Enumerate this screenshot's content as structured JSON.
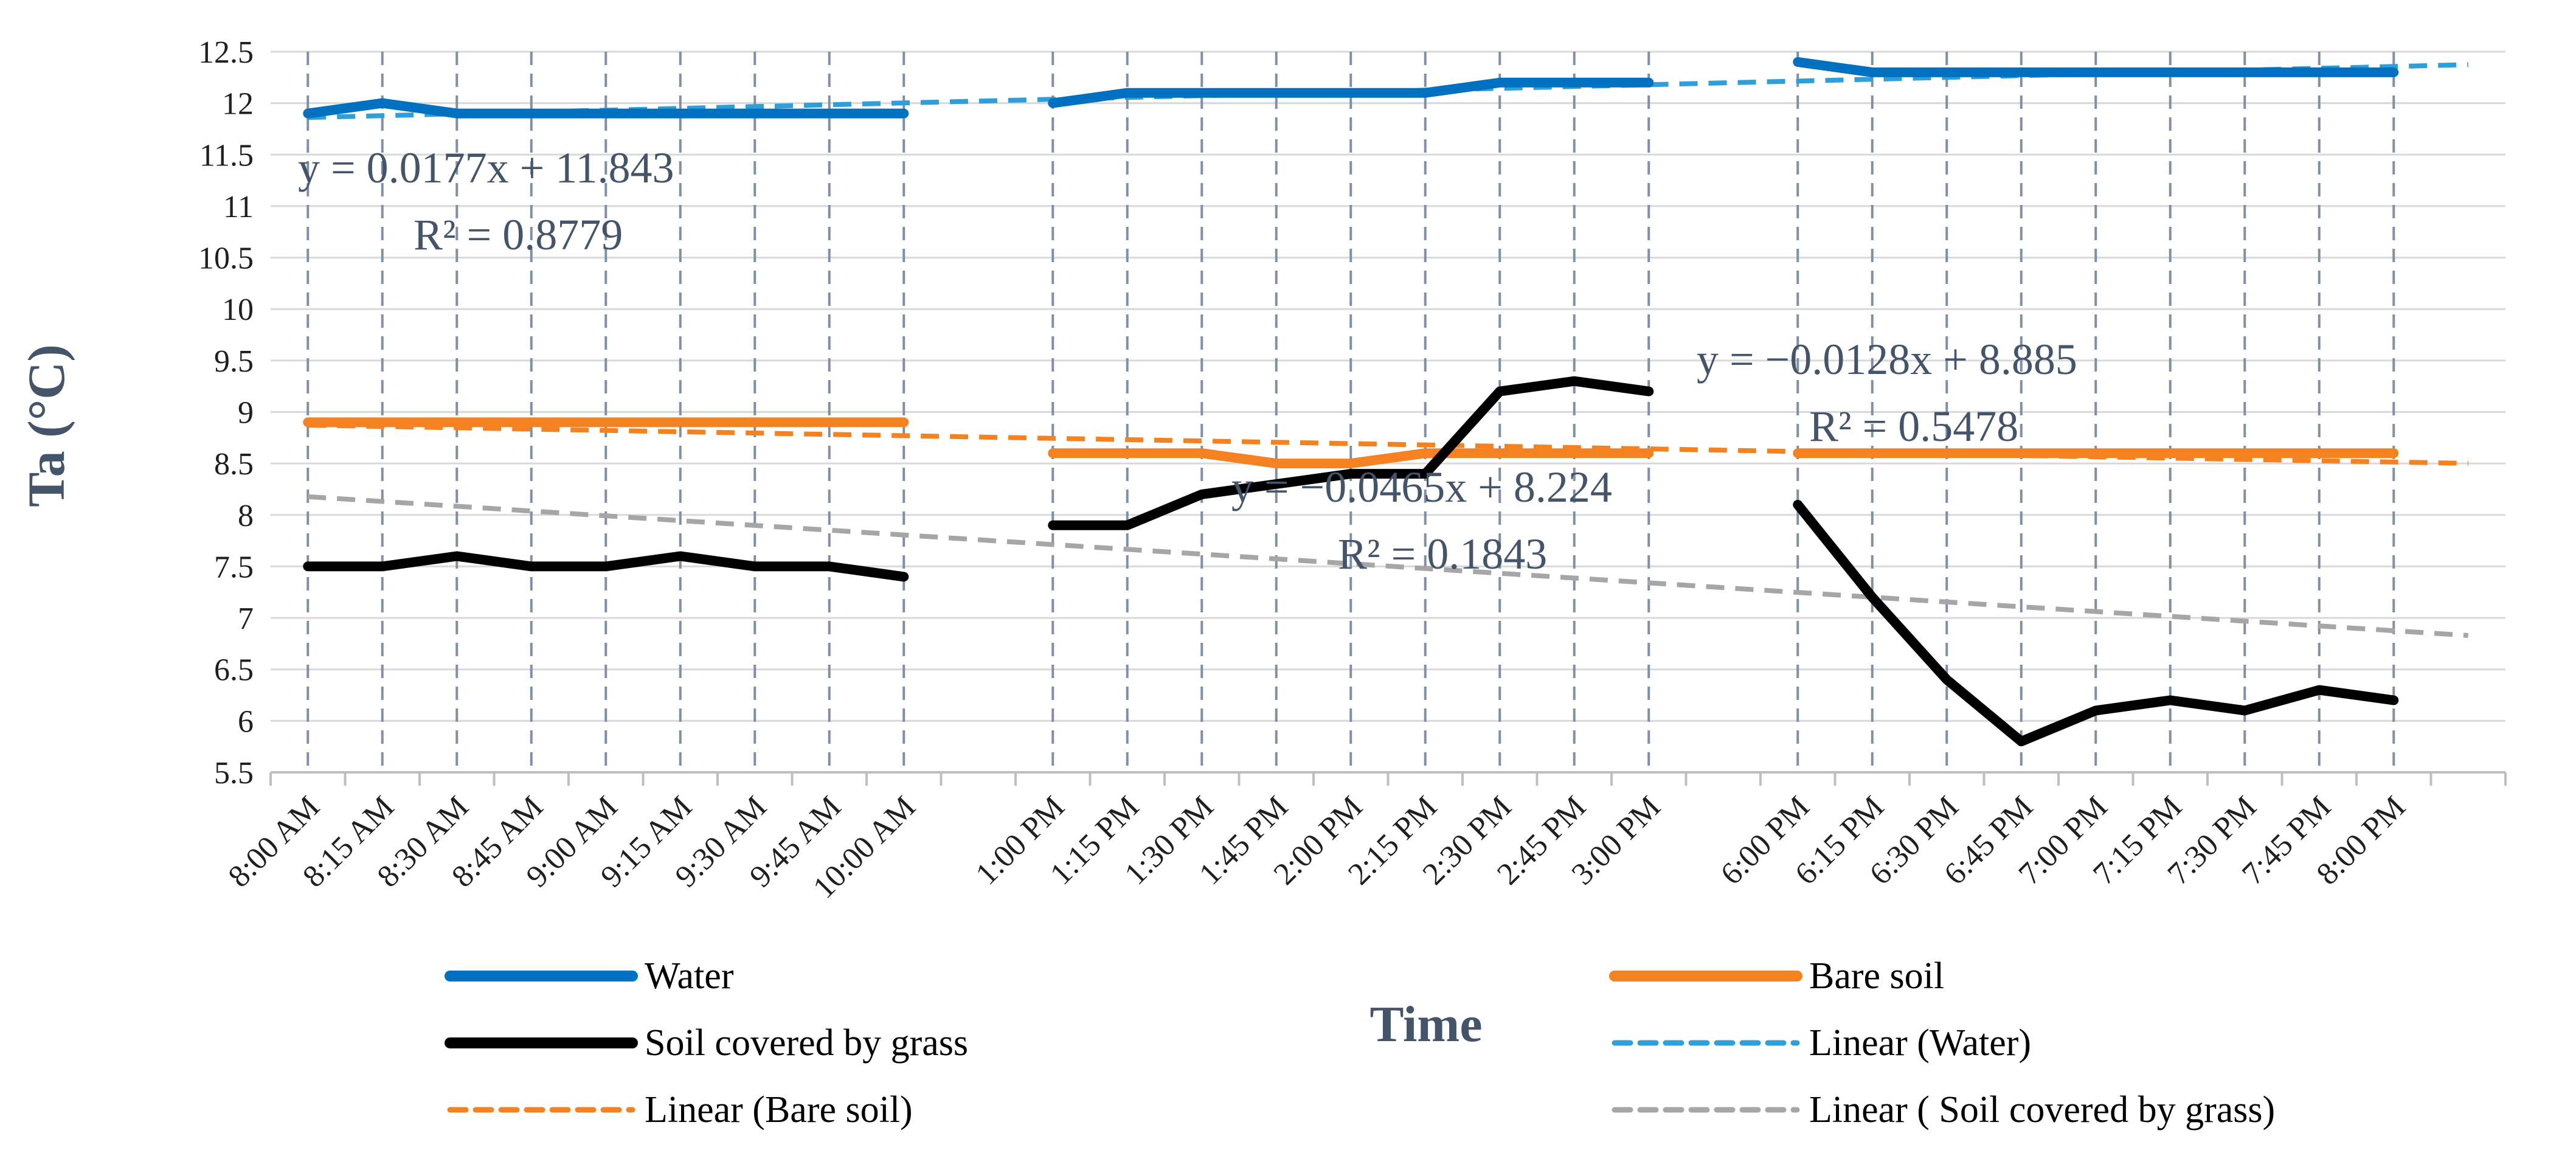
{
  "chart_data": {
    "type": "line",
    "xlabel": "Time",
    "ylabel": "Ta (°C)",
    "ylim": [
      5.5,
      12.5
    ],
    "ytick_step": 0.5,
    "ytick_labels": [
      "5.5",
      "6",
      "6.5",
      "7",
      "7.5",
      "8",
      "8.5",
      "9",
      "9.5",
      "10",
      "10.5",
      "11",
      "11.5",
      "12",
      "12.5"
    ],
    "categories": [
      "8:00 AM",
      "8:15 AM",
      "8:30 AM",
      "8:45 AM",
      "9:00 AM",
      "9:15 AM",
      "9:30 AM",
      "9:45 AM",
      "10:00 AM",
      "",
      "1:00 PM",
      "1:15 PM",
      "1:30 PM",
      "1:45 PM",
      "2:00 PM",
      "2:15 PM",
      "2:30 PM",
      "2:45 PM",
      "3:00 PM",
      "",
      "6:00 PM",
      "6:15 PM",
      "6:30 PM",
      "6:45 PM",
      "7:00 PM",
      "7:15 PM",
      "7:30 PM",
      "7:45 PM",
      "8:00 PM",
      ""
    ],
    "gridlines": "vertical dashed at each time point",
    "series": [
      {
        "name": "Water",
        "color": "#0070c0",
        "style": "solid",
        "values": [
          11.9,
          12.0,
          11.9,
          11.9,
          11.9,
          11.9,
          11.9,
          11.9,
          11.9,
          null,
          12.0,
          12.1,
          12.1,
          12.1,
          12.1,
          12.1,
          12.2,
          12.2,
          12.2,
          null,
          12.4,
          12.3,
          12.3,
          12.3,
          12.3,
          12.3,
          12.3,
          12.3,
          12.3,
          null
        ]
      },
      {
        "name": "Bare soil",
        "color": "#f58220",
        "style": "solid",
        "values": [
          8.9,
          8.9,
          8.9,
          8.9,
          8.9,
          8.9,
          8.9,
          8.9,
          8.9,
          null,
          8.6,
          8.6,
          8.6,
          8.5,
          8.5,
          8.6,
          8.6,
          8.6,
          8.6,
          null,
          8.6,
          8.6,
          8.6,
          8.6,
          8.6,
          8.6,
          8.6,
          8.6,
          8.6,
          null
        ]
      },
      {
        "name": "Soil covered by grass",
        "color": "#000000",
        "style": "solid",
        "values": [
          7.5,
          7.5,
          7.6,
          7.5,
          7.5,
          7.6,
          7.5,
          7.5,
          7.4,
          null,
          7.9,
          7.9,
          8.2,
          8.3,
          8.4,
          8.4,
          9.2,
          9.3,
          9.2,
          null,
          8.1,
          7.2,
          6.4,
          5.8,
          6.1,
          6.2,
          6.1,
          6.3,
          6.2,
          null
        ]
      }
    ],
    "trendlines": [
      {
        "name": "Linear (Water)",
        "color": "#2e9fd8",
        "style": "dashed",
        "slope": 0.0177,
        "intercept": 11.843
      },
      {
        "name": "Linear (Bare soil)",
        "color": "#f58220",
        "style": "dashed",
        "slope": -0.0128,
        "intercept": 8.885
      },
      {
        "name": "Linear ( Soil covered by grass)",
        "color": "#a6a6a6",
        "style": "dashed",
        "slope": -0.0465,
        "intercept": 8.224
      }
    ],
    "annotations": [
      {
        "id": "water-eq",
        "line1": "y = 0.0177x + 11.843",
        "line2": "R² = 0.8779"
      },
      {
        "id": "bare-eq",
        "line1": "y = −0.0128x + 8.885",
        "line2": "R² = 0.5478"
      },
      {
        "id": "grass-eq",
        "line1": "y = −0.0465x + 8.224",
        "line2": "R² = 0.1843"
      }
    ],
    "legend": {
      "placement": "bottom",
      "entries": [
        {
          "label": "Water",
          "color": "#0070c0",
          "style": "solid"
        },
        {
          "label": "Bare soil",
          "color": "#f58220",
          "style": "solid"
        },
        {
          "label": " Soil covered by grass",
          "color": "#000000",
          "style": "solid"
        },
        {
          "label": "Linear (Water)",
          "color": "#2e9fd8",
          "style": "dashed"
        },
        {
          "label": "Linear (Bare soil)",
          "color": "#f58220",
          "style": "dashed"
        },
        {
          "label": "Linear ( Soil covered by grass)",
          "color": "#a6a6a6",
          "style": "dashed"
        }
      ]
    }
  }
}
